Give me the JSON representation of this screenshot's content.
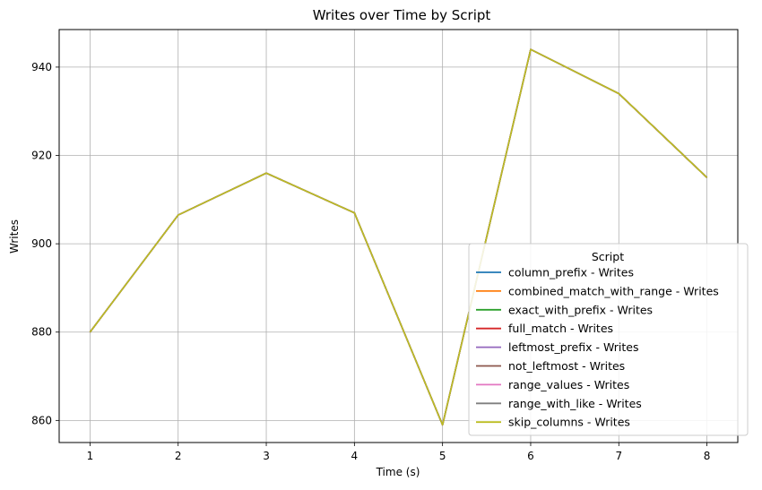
{
  "chart_data": {
    "type": "line",
    "title": "Writes over Time by Script",
    "xlabel": "Time (s)",
    "ylabel": "Writes",
    "x": [
      1,
      2,
      3,
      4,
      5,
      6,
      7,
      8
    ],
    "xlim": [
      0.65,
      8.35
    ],
    "ylim": [
      855,
      948.5
    ],
    "xticks": [
      1,
      2,
      3,
      4,
      5,
      6,
      7,
      8
    ],
    "yticks": [
      860,
      880,
      900,
      920,
      940
    ],
    "grid": true,
    "legend": {
      "title": "Script",
      "placement": "lower-right"
    },
    "series": [
      {
        "name": "column_prefix - Writes",
        "color": "#1f77b4",
        "values": [
          880,
          906.5,
          916,
          907,
          859,
          944,
          934,
          915
        ]
      },
      {
        "name": "combined_match_with_range - Writes",
        "color": "#ff7f0e",
        "values": [
          880,
          906.5,
          916,
          907,
          859,
          944,
          934,
          915
        ]
      },
      {
        "name": "exact_with_prefix - Writes",
        "color": "#2ca02c",
        "values": [
          880,
          906.5,
          916,
          907,
          859,
          944,
          934,
          915
        ]
      },
      {
        "name": "full_match - Writes",
        "color": "#d62728",
        "values": [
          880,
          906.5,
          916,
          907,
          859,
          944,
          934,
          915
        ]
      },
      {
        "name": "leftmost_prefix - Writes",
        "color": "#9467bd",
        "values": [
          880,
          906.5,
          916,
          907,
          859,
          944,
          934,
          915
        ]
      },
      {
        "name": "not_leftmost - Writes",
        "color": "#8c564b",
        "values": [
          880,
          906.5,
          916,
          907,
          859,
          944,
          934,
          915
        ]
      },
      {
        "name": "range_values - Writes",
        "color": "#e377c2",
        "values": [
          880,
          906.5,
          916,
          907,
          859,
          944,
          934,
          915
        ]
      },
      {
        "name": "range_with_like - Writes",
        "color": "#7f7f7f",
        "values": [
          880,
          906.5,
          916,
          907,
          859,
          944,
          934,
          915
        ]
      },
      {
        "name": "skip_columns - Writes",
        "color": "#bcbd22",
        "values": [
          880,
          906.5,
          916,
          907,
          859,
          944,
          934,
          915
        ]
      }
    ]
  }
}
